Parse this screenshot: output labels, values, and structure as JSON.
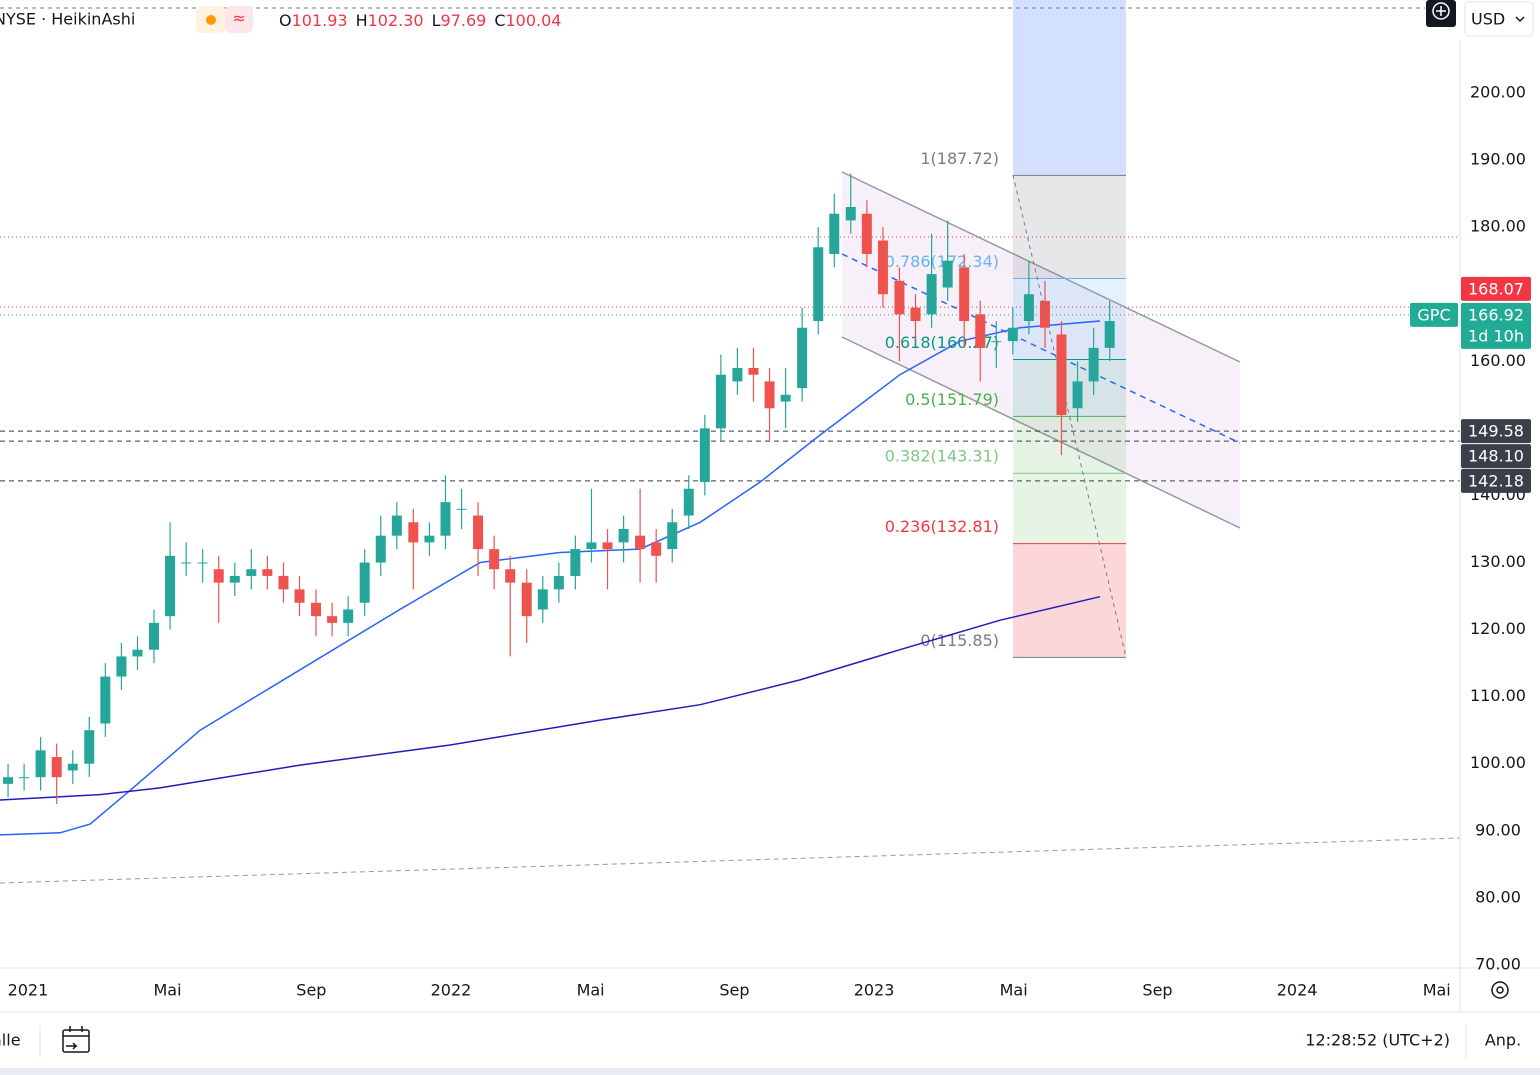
{
  "header": {
    "symbol": "NYSE · HeikinAshi",
    "ohlc": [
      {
        "key": "O",
        "value": "101.93"
      },
      {
        "key": "H",
        "value": "102.30"
      },
      {
        "key": "L",
        "value": "97.69"
      },
      {
        "key": "C",
        "value": "100.04"
      }
    ],
    "currency": "USD"
  },
  "chart_data": {
    "type": "candlestick",
    "grid": true,
    "up_color": "#26a69a",
    "down_color": "#ef5350",
    "xlim": [
      2020.934,
      2024.385
    ],
    "ylim": [
      69.55,
      213.86
    ],
    "xticks": [
      2021,
      {
        "value": 2021.33,
        "label": "Mai"
      },
      {
        "value": 2021.67,
        "label": "Sep"
      },
      2022,
      {
        "value": 2022.33,
        "label": "Mai"
      },
      {
        "value": 2022.67,
        "label": "Sep"
      },
      2023,
      {
        "value": 2023.33,
        "label": "Mai"
      },
      {
        "value": 2023.67,
        "label": "Sep"
      },
      2024,
      {
        "value": 2024.33,
        "label": "Mai"
      }
    ],
    "yticks": [
      {
        "value": 70,
        "label": "70.00"
      },
      {
        "value": 80,
        "label": "80.00"
      },
      {
        "value": 90,
        "label": "90.00"
      },
      {
        "value": 100,
        "label": "100.00"
      },
      {
        "value": 110,
        "label": "110.00"
      },
      {
        "value": 120,
        "label": "120.00"
      },
      {
        "value": 130,
        "label": "130.00"
      },
      {
        "value": 140,
        "label": "140.00"
      },
      {
        "value": 150,
        "label": "150.00"
      },
      {
        "value": 160,
        "label": "160.00"
      },
      {
        "value": 170,
        "label": "170.00"
      },
      {
        "value": 180,
        "label": "180.00"
      },
      {
        "value": 190,
        "label": "190.00"
      },
      {
        "value": 200,
        "label": "200.00"
      }
    ],
    "x": [
      2020.953,
      2020.991,
      2021.03,
      2021.068,
      2021.106,
      2021.145,
      2021.183,
      2021.221,
      2021.259,
      2021.298,
      2021.336,
      2021.374,
      2021.413,
      2021.451,
      2021.489,
      2021.528,
      2021.566,
      2021.604,
      2021.642,
      2021.681,
      2021.719,
      2021.757,
      2021.796,
      2021.834,
      2021.872,
      2021.911,
      2021.949,
      2021.987,
      2022.025,
      2022.064,
      2022.102,
      2022.14,
      2022.179,
      2022.217,
      2022.255,
      2022.294,
      2022.332,
      2022.37,
      2022.408,
      2022.447,
      2022.485,
      2022.523,
      2022.562,
      2022.6,
      2022.638,
      2022.677,
      2022.715,
      2022.753,
      2022.791,
      2022.83,
      2022.868,
      2022.906,
      2022.945,
      2022.983,
      2023.021,
      2023.06,
      2023.098,
      2023.136,
      2023.174,
      2023.213,
      2023.251,
      2023.289,
      2023.328,
      2023.366,
      2023.404,
      2023.443,
      2023.481,
      2023.519,
      2023.557
    ],
    "open": [
      97,
      98,
      98,
      101,
      99,
      100,
      106,
      113,
      116,
      117,
      122,
      130,
      130,
      129,
      127,
      128,
      129,
      128,
      126,
      124,
      122,
      121,
      124,
      130,
      134,
      136,
      133,
      134,
      138,
      137,
      132,
      129,
      127,
      123,
      126,
      128,
      132,
      133,
      133,
      134,
      133,
      132,
      137,
      142,
      150,
      157,
      159,
      157,
      154,
      156,
      166,
      176,
      181,
      182,
      178,
      172,
      168,
      167,
      171,
      174,
      167,
      163,
      163,
      166,
      169,
      164,
      153,
      157,
      162
    ],
    "high": [
      100,
      100,
      104,
      103,
      102,
      107,
      115,
      118,
      119,
      123,
      136,
      133,
      132,
      131,
      130,
      132,
      131,
      130,
      128,
      126,
      124,
      125,
      132,
      137,
      139,
      138,
      136,
      143,
      141,
      139,
      134,
      131,
      129,
      128,
      130,
      134,
      141,
      135,
      137,
      141,
      135,
      138,
      143,
      152,
      161,
      162,
      162,
      159,
      159,
      168,
      180,
      185,
      188,
      184,
      180,
      174,
      170,
      179,
      181,
      176,
      169,
      166,
      168,
      175,
      172,
      166,
      160,
      165,
      169
    ],
    "low": [
      95,
      96,
      96,
      94,
      97,
      98,
      104,
      111,
      114,
      115,
      120,
      128,
      127,
      121,
      125,
      126,
      126,
      124,
      122,
      119,
      119,
      119,
      122,
      128,
      132,
      126,
      131,
      132,
      135,
      128,
      126,
      116,
      118,
      121,
      124,
      126,
      130,
      126,
      130,
      127,
      127,
      130,
      135,
      140,
      148,
      155,
      154,
      148,
      150,
      154,
      164,
      174,
      179,
      174,
      168,
      160,
      163,
      165,
      169,
      162,
      157,
      159,
      161,
      164,
      162,
      146,
      151,
      155,
      160
    ],
    "close": [
      98,
      98,
      102,
      98,
      100,
      105,
      113,
      116,
      117,
      121,
      131,
      130,
      130,
      127,
      128,
      129,
      128,
      126,
      124,
      122,
      121,
      123,
      130,
      134,
      137,
      133,
      134,
      139,
      138,
      132,
      129,
      127,
      122,
      126,
      128,
      132,
      133,
      132,
      135,
      132,
      131,
      136,
      141,
      150,
      158,
      159,
      158,
      153,
      155,
      165,
      177,
      182,
      183,
      176,
      170,
      167,
      166,
      173,
      175,
      166,
      162,
      163,
      165,
      170,
      165,
      152,
      157,
      162,
      166
    ],
    "lines": [
      {
        "color": "#2962ff",
        "x": [
          2020.934,
          2021.076,
          2021.147,
          2021.241,
          2021.407,
          2021.643,
          2021.879,
          2022.069,
          2022.258,
          2022.447,
          2022.589,
          2022.731,
          2022.872,
          2023.061,
          2023.203,
          2023.345,
          2023.534
        ],
        "values": [
          89.4,
          89.7,
          91,
          96,
          105,
          114,
          123,
          130,
          131.5,
          132,
          136,
          142,
          149,
          158,
          163,
          165,
          166
        ]
      },
      {
        "color": "#1f1fb8",
        "x": [
          2020.934,
          2021.17,
          2021.312,
          2021.643,
          2021.998,
          2022.352,
          2022.589,
          2022.825,
          2023.061,
          2023.298,
          2023.534
        ],
        "values": [
          94.6,
          95.4,
          96.4,
          99.8,
          102.8,
          106.5,
          108.8,
          112.5,
          117,
          121.4,
          124.9
        ]
      }
    ],
    "fib_levels": [
      {
        "value": 187.72,
        "label": "1(187.72)",
        "color": "#787b86",
        "fill": "rgba(120,123,134,0.18)"
      },
      {
        "value": 172.34,
        "label": "0.786(172.34)",
        "color": "#64b5f6",
        "fill": "rgba(100,181,246,0.18)"
      },
      {
        "value": 160.27,
        "label": "0.618(160.27)",
        "color": "#089981",
        "fill": "rgba(8,153,129,0.14)"
      },
      {
        "value": 151.79,
        "label": "0.5(151.79)",
        "color": "#4caf50",
        "fill": "rgba(76,175,80,0.14)"
      },
      {
        "value": 143.31,
        "label": "0.382(143.31)",
        "color": "#81c784",
        "fill": "rgba(129,199,132,0.2)"
      },
      {
        "value": 132.81,
        "label": "0.236(132.81)",
        "color": "#f23645",
        "fill": "rgba(242,54,69,0.2)"
      },
      {
        "value": 115.85,
        "label": "0(115.85)",
        "color": "#787b86",
        "fill": "none"
      }
    ],
    "price_markers": [
      {
        "value": 168.07,
        "label": "168.07",
        "color": "#f23645",
        "line": "dotted"
      },
      {
        "value": 149.58,
        "label": "149.58",
        "color": "#3b3f4a",
        "line": "dashed"
      },
      {
        "value": 148.1,
        "label": "148.10",
        "color": "#3b3f4a",
        "line": "dashed"
      },
      {
        "value": 142.18,
        "label": "142.18",
        "color": "#3b3f4a",
        "line": "dashed"
      }
    ],
    "last_price": {
      "symbol": "GPC",
      "value": 166.92,
      "label": "166.92",
      "countdown": "1d 10h",
      "color": "#22ab94"
    }
  },
  "footer": {
    "range": "alle",
    "clock": "12:28:52 (UTC+2)",
    "adjust": "Anp."
  }
}
